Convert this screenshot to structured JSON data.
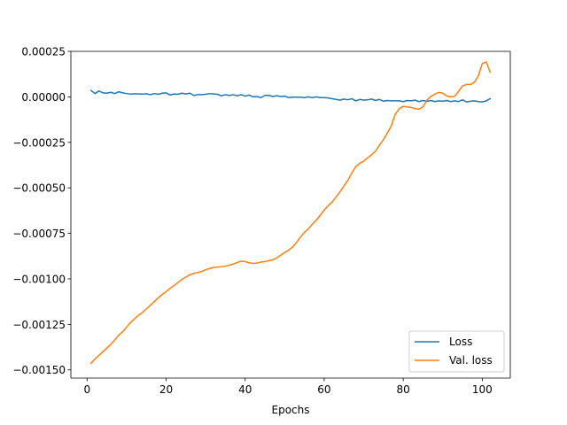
{
  "chart_data": {
    "type": "line",
    "title": "",
    "xlabel": "Epochs",
    "ylabel": "",
    "xlim": [
      -4.1,
      107.1
    ],
    "ylim": [
      -0.001545,
      0.00025
    ],
    "xticks": [
      0,
      20,
      40,
      60,
      80,
      100
    ],
    "xtick_labels": [
      "0",
      "20",
      "40",
      "60",
      "80",
      "100"
    ],
    "yticks": [
      0.00025,
      0.0,
      -0.00025,
      -0.0005,
      -0.00075,
      -0.001,
      -0.00125,
      -0.0015
    ],
    "ytick_labels": [
      "0.00025",
      "0.00000",
      "−0.00025",
      "−0.00050",
      "−0.00075",
      "−0.00100",
      "−0.00125",
      "−0.00150"
    ],
    "grid": false,
    "legend_position": "lower-right",
    "series": [
      {
        "name": "Loss",
        "color": "#1f77b4",
        "x": [
          1,
          2,
          3,
          4,
          5,
          6,
          7,
          8,
          9,
          10,
          11,
          12,
          13,
          14,
          15,
          16,
          17,
          18,
          19,
          20,
          21,
          22,
          23,
          24,
          25,
          26,
          27,
          28,
          29,
          30,
          31,
          32,
          33,
          34,
          35,
          36,
          37,
          38,
          39,
          40,
          41,
          42,
          43,
          44,
          45,
          46,
          47,
          48,
          49,
          50,
          51,
          52,
          53,
          54,
          55,
          56,
          57,
          58,
          59,
          60,
          61,
          62,
          63,
          64,
          65,
          66,
          67,
          68,
          69,
          70,
          71,
          72,
          73,
          74,
          75,
          76,
          77,
          78,
          79,
          80,
          81,
          82,
          83,
          84,
          85,
          86,
          87,
          88,
          89,
          90,
          91,
          92,
          93,
          94,
          95,
          96,
          97,
          98,
          99,
          100,
          101,
          102
        ],
        "y": [
          3.5e-05,
          1.8e-05,
          3.2e-05,
          2.2e-05,
          2e-05,
          2.5e-05,
          1.8e-05,
          2.8e-05,
          2.2e-05,
          1.8e-05,
          1.5e-05,
          1.7e-05,
          1.6e-05,
          1.5e-05,
          1.7e-05,
          1.2e-05,
          1.8e-05,
          1.4e-05,
          2e-05,
          2.2e-05,
          1e-05,
          1.6e-05,
          1.4e-05,
          2e-05,
          1.6e-05,
          2e-05,
          8e-06,
          1.2e-05,
          1.2e-05,
          1.4e-05,
          1.8e-05,
          1.6e-05,
          1.4e-05,
          6e-06,
          1.2e-05,
          8e-06,
          1.2e-05,
          6e-06,
          1.2e-05,
          4e-06,
          1e-05,
          0.0,
          2e-06,
          -4e-06,
          8e-06,
          8e-06,
          2e-06,
          6e-06,
          2e-06,
          4e-06,
          -4e-06,
          -2e-06,
          -2e-06,
          -2e-06,
          -4e-06,
          0.0,
          -4e-06,
          0.0,
          -4e-06,
          -4e-06,
          -6e-06,
          -1e-05,
          -1.4e-05,
          -1.8e-05,
          -1.2e-05,
          -1.6e-05,
          -1e-05,
          -2.2e-05,
          -1.4e-05,
          -1.8e-05,
          -1.6e-05,
          -1.2e-05,
          -2e-05,
          -1.4e-05,
          -2.4e-05,
          -2e-05,
          -2.2e-05,
          -2.2e-05,
          -2.2e-05,
          -2.6e-05,
          -2e-05,
          -2.2e-05,
          -1.8e-05,
          -2.6e-05,
          -2e-05,
          -2.4e-05,
          -2e-05,
          -2.6e-05,
          -2.2e-05,
          -2.4e-05,
          -2e-05,
          -2.6e-05,
          -2.2e-05,
          -2.6e-05,
          -1.6e-05,
          -2.8e-05,
          -2.4e-05,
          -2.2e-05,
          -2.6e-05,
          -2.8e-05,
          -2.2e-05,
          -1e-05
        ]
      },
      {
        "name": "Val. loss",
        "color": "#ff7f0e",
        "x": [
          1,
          2,
          3,
          4,
          5,
          6,
          7,
          8,
          9,
          10,
          11,
          12,
          13,
          14,
          15,
          16,
          17,
          18,
          19,
          20,
          21,
          22,
          23,
          24,
          25,
          26,
          27,
          28,
          29,
          30,
          31,
          32,
          33,
          34,
          35,
          36,
          37,
          38,
          39,
          40,
          41,
          42,
          43,
          44,
          45,
          46,
          47,
          48,
          49,
          50,
          51,
          52,
          53,
          54,
          55,
          56,
          57,
          58,
          59,
          60,
          61,
          62,
          63,
          64,
          65,
          66,
          67,
          68,
          69,
          70,
          71,
          72,
          73,
          74,
          75,
          76,
          77,
          78,
          79,
          80,
          81,
          82,
          83,
          84,
          85,
          86,
          87,
          88,
          89,
          90,
          91,
          92,
          93,
          94,
          95,
          96,
          97,
          98,
          99,
          100,
          101,
          102
        ],
        "y": [
          -0.001465,
          -0.00144,
          -0.00142,
          -0.0014,
          -0.00138,
          -0.00136,
          -0.001335,
          -0.00131,
          -0.00129,
          -0.001265,
          -0.00124,
          -0.00122,
          -0.0012,
          -0.001185,
          -0.001165,
          -0.001145,
          -0.001125,
          -0.001105,
          -0.001085,
          -0.00107,
          -0.001052,
          -0.001037,
          -0.00102,
          -0.001003,
          -0.00099,
          -0.000978,
          -0.00097,
          -0.000965,
          -0.00096,
          -0.00095,
          -0.000943,
          -0.000937,
          -0.000935,
          -0.000933,
          -0.00093,
          -0.000925,
          -0.000918,
          -0.00091,
          -0.000903,
          -0.000905,
          -0.000912,
          -0.000915,
          -0.000913,
          -0.000908,
          -0.000905,
          -0.0009,
          -0.000895,
          -0.000885,
          -0.00087,
          -0.000855,
          -0.000842,
          -0.000825,
          -0.0008,
          -0.00077,
          -0.000745,
          -0.000725,
          -0.0007,
          -0.000678,
          -0.00065,
          -0.000622,
          -0.000598,
          -0.000578,
          -0.00055,
          -0.000522,
          -0.00049,
          -0.000458,
          -0.000418,
          -0.000383,
          -0.000365,
          -0.000353,
          -0.000335,
          -0.000318,
          -0.000298,
          -0.000265,
          -0.000235,
          -0.000198,
          -0.000158,
          -9.5e-05,
          -6.5e-05,
          -5.2e-05,
          -5.5e-05,
          -5.8e-05,
          -6.5e-05,
          -6.8e-05,
          -5.5e-05,
          -1.8e-05,
          2e-06,
          1.5e-05,
          2.5e-05,
          2e-05,
          5e-06,
          0.0,
          2e-06,
          3e-05,
          6e-05,
          6.8e-05,
          6.8e-05,
          8e-05,
          0.000115,
          0.000182,
          0.000192,
          0.000135
        ]
      }
    ]
  }
}
